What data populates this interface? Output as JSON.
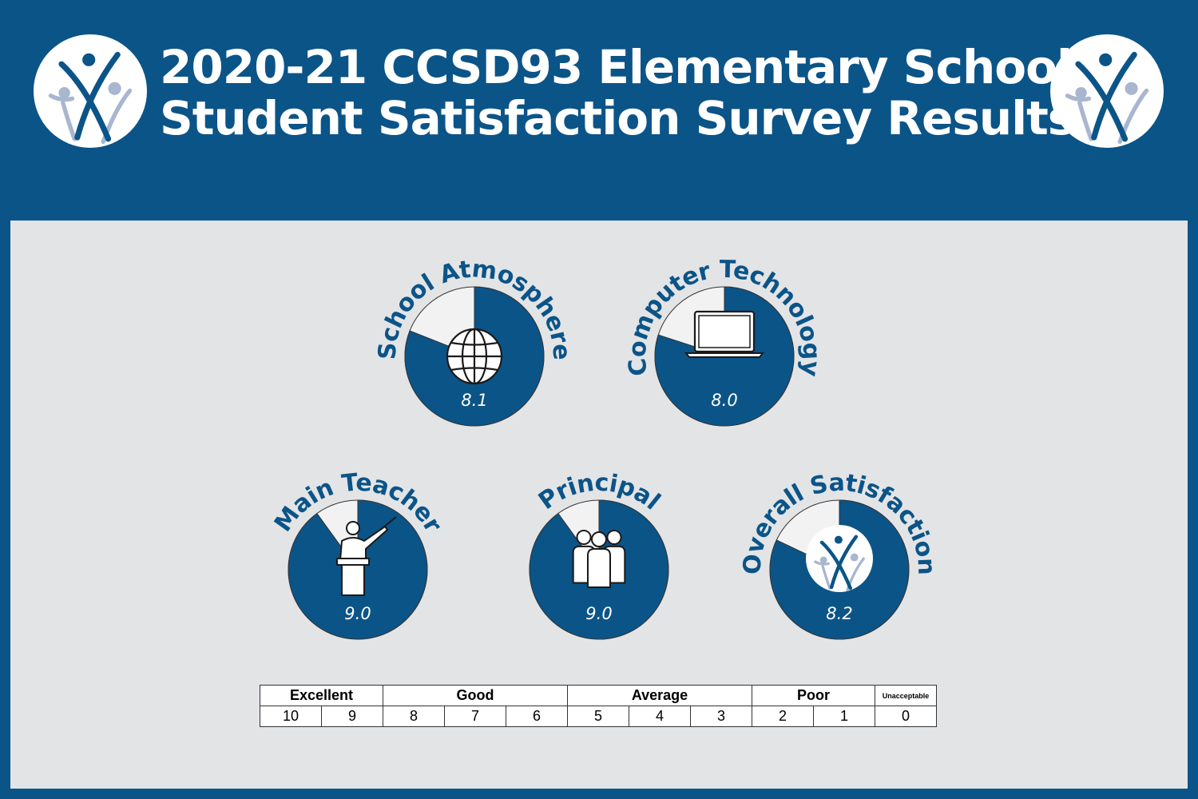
{
  "header": {
    "title_line1": "2020-21 CCSD93 Elementary School",
    "title_line2": "Student Satisfaction Survey Results"
  },
  "colors": {
    "primary": "#0b5488",
    "panel": "#e3e4e6",
    "remainder": "#f2f2f3",
    "logo_light": "#a9b6cf"
  },
  "chart_data": {
    "type": "pie",
    "scale_max": 10,
    "items": [
      {
        "label": "School Atmosphere",
        "value": 8.1,
        "display": "8.1",
        "icon": "globe-icon"
      },
      {
        "label": "Computer Technology",
        "value": 8.0,
        "display": "8.0",
        "icon": "laptop-icon"
      },
      {
        "label": "Main Teacher",
        "value": 9.0,
        "display": "9.0",
        "icon": "teacher-icon"
      },
      {
        "label": "Principal",
        "value": 9.0,
        "display": "9.0",
        "icon": "people-icon"
      },
      {
        "label": "Overall Satisfaction",
        "value": 8.2,
        "display": "8.2",
        "icon": "ccsd93-logo-icon"
      }
    ]
  },
  "scale": {
    "categories": [
      {
        "label": "Excellent",
        "span": 2
      },
      {
        "label": "Good",
        "span": 3
      },
      {
        "label": "Average",
        "span": 3
      },
      {
        "label": "Poor",
        "span": 2
      },
      {
        "label": "Unacceptable",
        "span": 1
      }
    ],
    "values": [
      "10",
      "9",
      "8",
      "7",
      "6",
      "5",
      "4",
      "3",
      "2",
      "1",
      "0"
    ]
  }
}
